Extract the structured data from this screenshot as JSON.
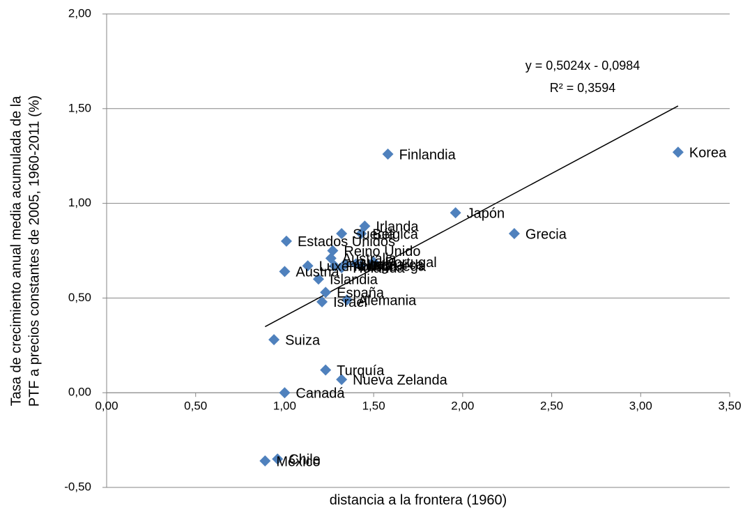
{
  "chart_data": {
    "type": "scatter",
    "x_label": "distancia a la frontera (1960)",
    "y_label": [
      "Tasa de crecimiento anual media acumulada de la",
      "PTF a precios constantes de 2005, 1960-2011 (%)"
    ],
    "labels": [
      "Korea",
      "Finlandia",
      "Japón",
      "Grecia",
      "Irlanda",
      "Bélgica",
      "Suecia",
      "Estados Unidos",
      "Reino Unido",
      "Australia",
      "Portugal",
      "Dinamarca",
      "Italia",
      "Noruega",
      "Luxemburgo",
      "Francia",
      "Holanda",
      "Austria",
      "Islandia",
      "España",
      "Israel",
      "Alemania",
      "Suiza",
      "Turquía",
      "Nueva Zelanda",
      "Canadá",
      "Chile",
      "México"
    ],
    "x": [
      3.21,
      1.58,
      1.96,
      2.29,
      1.45,
      1.43,
      1.32,
      1.01,
      1.27,
      1.26,
      1.5,
      1.34,
      1.4,
      1.43,
      1.13,
      1.28,
      1.32,
      1.0,
      1.19,
      1.23,
      1.21,
      1.35,
      0.94,
      1.23,
      1.32,
      1.0,
      0.96,
      0.89
    ],
    "values": [
      1.27,
      1.26,
      0.95,
      0.84,
      0.88,
      0.84,
      0.84,
      0.8,
      0.75,
      0.71,
      0.69,
      0.68,
      0.68,
      0.67,
      0.67,
      0.67,
      0.66,
      0.64,
      0.6,
      0.53,
      0.48,
      0.49,
      0.28,
      0.12,
      0.07,
      0.0,
      -0.35,
      -0.36
    ],
    "color": "#4f81bd",
    "trendline": {
      "slope": 0.5024,
      "intercept": -0.0984,
      "color": "#000000"
    },
    "annotation": [
      "y = 0,5024x - 0,0984",
      "R² = 0,3594"
    ],
    "xlim": [
      0,
      3.5
    ],
    "xticks": [
      {
        "value": 0,
        "label": "0,00"
      },
      {
        "value": 0.5,
        "label": "0,50"
      },
      {
        "value": 1,
        "label": "1,00"
      },
      {
        "value": 1.5,
        "label": "1,50"
      },
      {
        "value": 2,
        "label": "2,00"
      },
      {
        "value": 2.5,
        "label": "2,50"
      },
      {
        "value": 3,
        "label": "3,00"
      },
      {
        "value": 3.5,
        "label": "3,50"
      }
    ],
    "ylim": [
      -0.5,
      2
    ],
    "yticks": [
      {
        "value": -0.5,
        "label": "-0,50"
      },
      {
        "value": 0,
        "label": "0,00"
      },
      {
        "value": 0.5,
        "label": "0,50"
      },
      {
        "value": 1,
        "label": "1,00"
      },
      {
        "value": 1.5,
        "label": "1,50"
      },
      {
        "value": 2,
        "label": "2,00"
      }
    ],
    "grid": true
  }
}
